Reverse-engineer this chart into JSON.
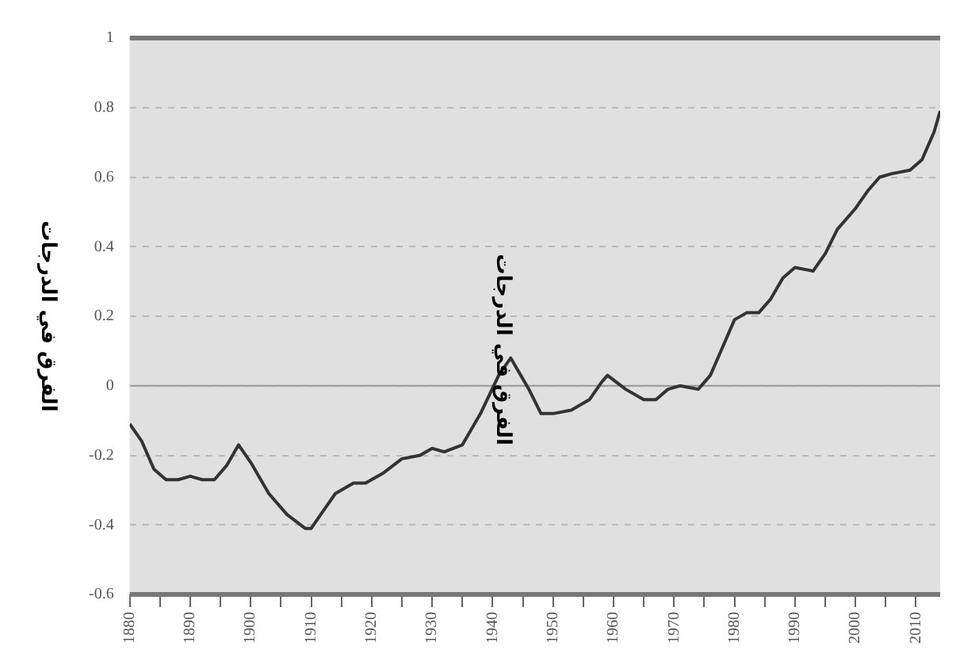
{
  "chart_data": {
    "type": "line",
    "ylabel": "الفرق في الدرجات",
    "annotations": [
      "الفرق في الدرجات"
    ],
    "x": [
      1880,
      1882,
      1884,
      1886,
      1888,
      1890,
      1892,
      1894,
      1896,
      1898,
      1900,
      1903,
      1906,
      1909,
      1910,
      1912,
      1914,
      1917,
      1919,
      1922,
      1925,
      1928,
      1930,
      1932,
      1935,
      1938,
      1941,
      1943,
      1946,
      1948,
      1950,
      1953,
      1956,
      1958,
      1959,
      1962,
      1965,
      1967,
      1969,
      1971,
      1974,
      1976,
      1978,
      1980,
      1982,
      1984,
      1986,
      1988,
      1990,
      1993,
      1995,
      1997,
      2000,
      2002,
      2004,
      2006,
      2009,
      2011,
      2013,
      2014
    ],
    "series": [
      {
        "color": "#333333",
        "values": [
          -0.11,
          -0.16,
          -0.24,
          -0.27,
          -0.27,
          -0.26,
          -0.27,
          -0.27,
          -0.23,
          -0.17,
          -0.22,
          -0.31,
          -0.37,
          -0.41,
          -0.41,
          -0.36,
          -0.31,
          -0.28,
          -0.28,
          -0.25,
          -0.21,
          -0.2,
          -0.18,
          -0.19,
          -0.17,
          -0.08,
          0.03,
          0.08,
          -0.01,
          -0.08,
          -0.08,
          -0.07,
          -0.04,
          0.01,
          0.03,
          -0.01,
          -0.04,
          -0.04,
          -0.01,
          0,
          -0.01,
          0.03,
          0.11,
          0.19,
          0.21,
          0.21,
          0.25,
          0.31,
          0.34,
          0.33,
          0.38,
          0.45,
          0.51,
          0.56,
          0.6,
          0.61,
          0.62,
          0.65,
          0.73,
          0.79
        ]
      }
    ],
    "xlim": [
      1880,
      2014
    ],
    "xticks": [
      1880,
      {
        "value": 1885,
        "label": null
      },
      1890,
      {
        "value": 1895,
        "label": null
      },
      1900,
      {
        "value": 1905,
        "label": null
      },
      1910,
      {
        "value": 1915,
        "label": null
      },
      1920,
      {
        "value": 1925,
        "label": null
      },
      1930,
      {
        "value": 1935,
        "label": null
      },
      1940,
      {
        "value": 1945,
        "label": null
      },
      1950,
      {
        "value": 1955,
        "label": null
      },
      1960,
      {
        "value": 1965,
        "label": null
      },
      1970,
      {
        "value": 1975,
        "label": null
      },
      1980,
      {
        "value": 1985,
        "label": null
      },
      1990,
      {
        "value": 1995,
        "label": null
      },
      2000,
      {
        "value": 2005,
        "label": null
      },
      2010
    ],
    "ylim": [
      -0.6,
      1
    ],
    "yticks": [
      -0.6,
      -0.4,
      -0.2,
      0,
      0.2,
      0.4,
      0.6,
      0.8,
      1
    ],
    "ref_lines": [
      {
        "axis": "y",
        "value": 0,
        "color": "#999999",
        "line_style": "solid"
      }
    ],
    "grid": "y",
    "legend": false,
    "marker": "none",
    "line_style": "solid"
  }
}
